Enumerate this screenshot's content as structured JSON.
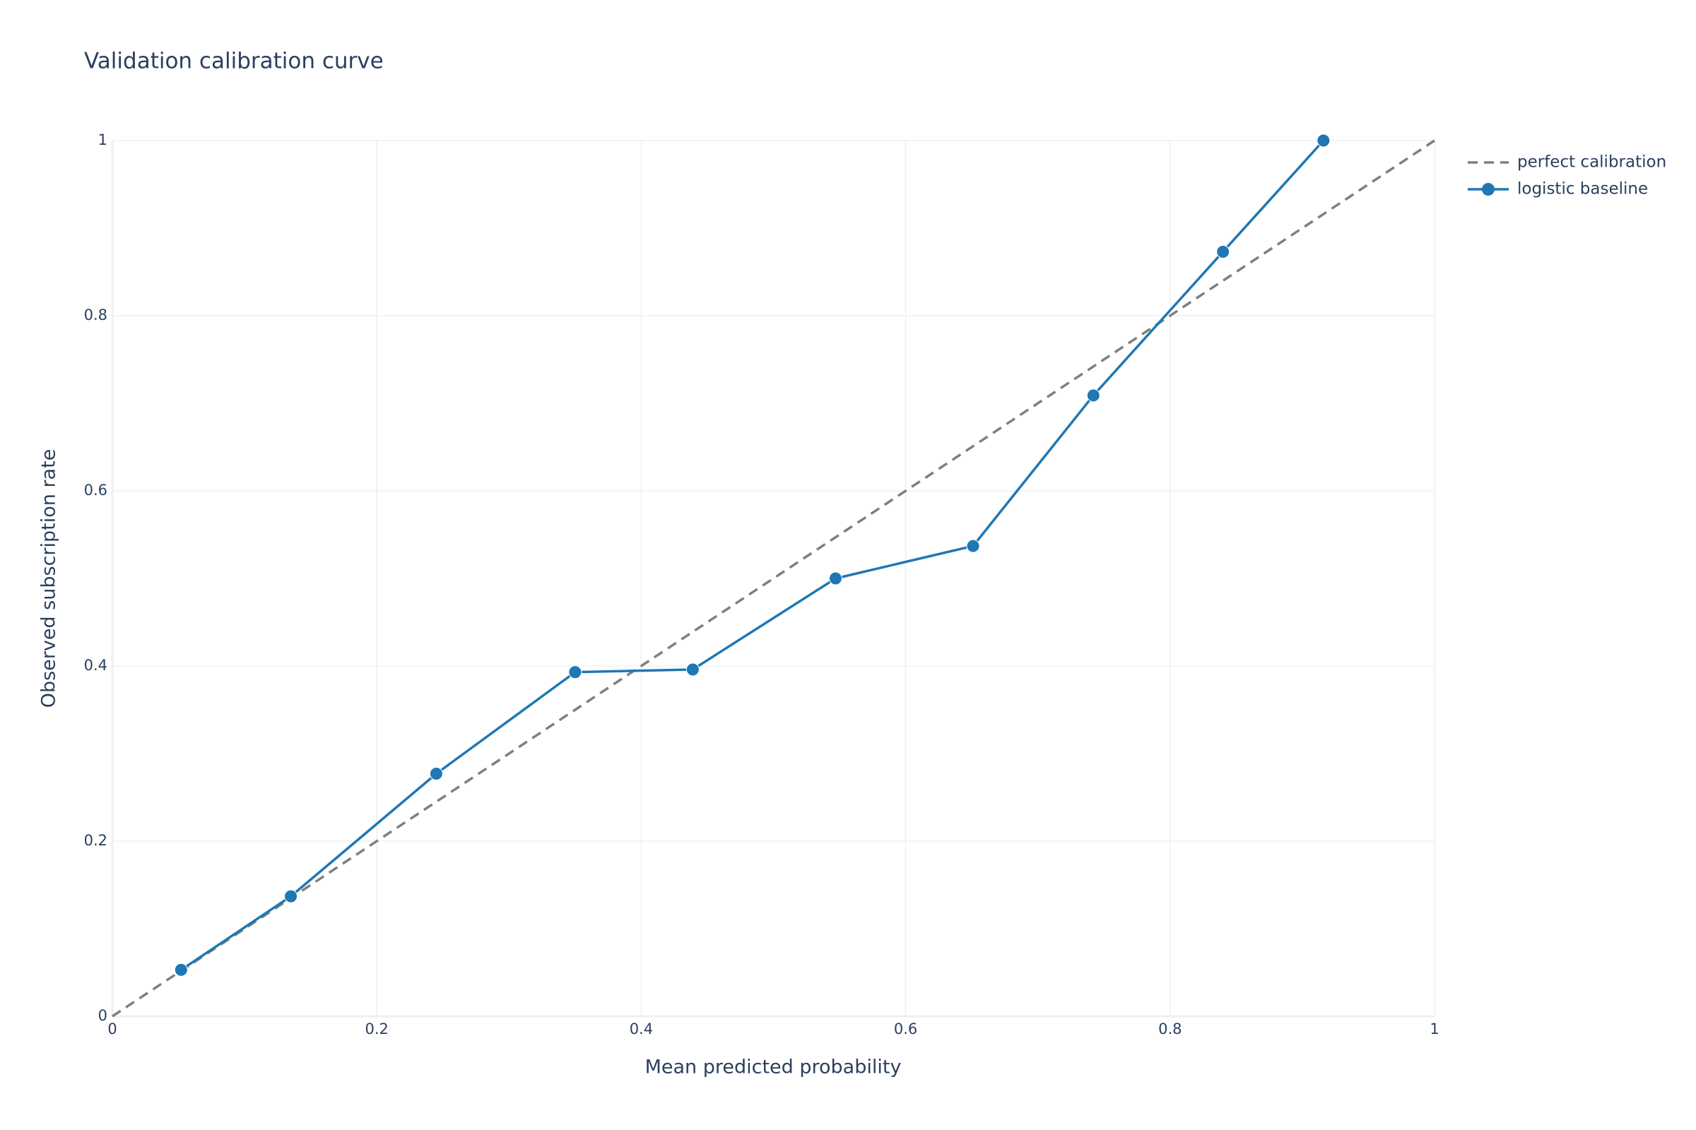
{
  "chart_data": {
    "type": "line",
    "title": "Validation calibration curve",
    "x_label": "Mean predicted probability",
    "y_label": "Observed subscription rate",
    "xlim": [
      0,
      1
    ],
    "ylim": [
      0,
      1
    ],
    "xticks": [
      0,
      0.2,
      0.4,
      0.6,
      0.8,
      1
    ],
    "yticks": [
      0,
      0.2,
      0.4,
      0.6,
      0.8,
      1
    ],
    "grid": true,
    "legend": "top-right",
    "series": [
      {
        "name": "perfect calibration",
        "color": "#7f7f7f",
        "dash": true,
        "markers": false,
        "x": [
          0,
          1
        ],
        "values": [
          0,
          1
        ]
      },
      {
        "name": "logistic baseline",
        "color": "#1f77b4",
        "dash": false,
        "markers": true,
        "x": [
          0.052,
          0.135,
          0.245,
          0.35,
          0.439,
          0.547,
          0.651,
          0.742,
          0.84,
          0.916
        ],
        "values": [
          0.053,
          0.137,
          0.277,
          0.393,
          0.396,
          0.5,
          0.537,
          0.709,
          0.873,
          1.0
        ]
      }
    ]
  }
}
